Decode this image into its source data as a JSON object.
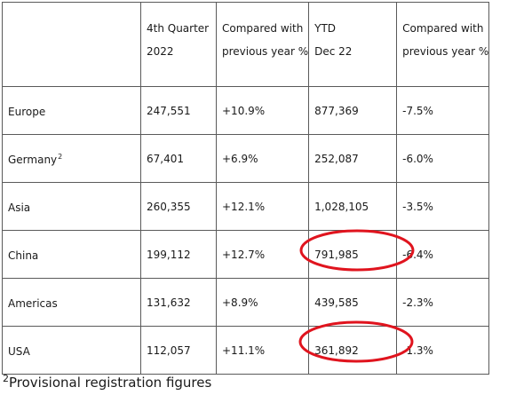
{
  "table": {
    "headers": {
      "region": "",
      "q4_line1": "4th Quarter",
      "q4_line2": "2022",
      "yoy_line1": "Compared with",
      "yoy_line2": "previous year %",
      "ytd_line1": "YTD",
      "ytd_line2": "Dec 22",
      "ytd_yoy_line1": "Compared with",
      "ytd_yoy_line2": "previous year %"
    },
    "rows": [
      {
        "region": "Europe",
        "footnote": "",
        "q4": "247,551",
        "q4_change": "+10.9%",
        "ytd": "877,369",
        "ytd_change": "-7.5%"
      },
      {
        "region": "Germany",
        "footnote": "2",
        "q4": "67,401",
        "q4_change": "+6.9%",
        "ytd": "252,087",
        "ytd_change": "-6.0%"
      },
      {
        "region": "Asia",
        "footnote": "",
        "q4": "260,355",
        "q4_change": "+12.1%",
        "ytd": "1,028,105",
        "ytd_change": "-3.5%"
      },
      {
        "region": "China",
        "footnote": "",
        "q4": "199,112",
        "q4_change": "+12.7%",
        "ytd": "791,985",
        "ytd_change": "-6.4%"
      },
      {
        "region": "Americas",
        "footnote": "",
        "q4": "131,632",
        "q4_change": "+8.9%",
        "ytd": "439,585",
        "ytd_change": "-2.3%"
      },
      {
        "region": "USA",
        "footnote": "",
        "q4": "112,057",
        "q4_change": "+11.1%",
        "ytd": "361,892",
        "ytd_change": "-1.3%"
      }
    ]
  },
  "footnote": {
    "marker": "2",
    "text": "Provisional registration figures"
  },
  "annotations": {
    "highlight_color": "#e0141e",
    "circled_cells": [
      "China YTD Dec 22",
      "USA YTD Dec 22"
    ]
  }
}
